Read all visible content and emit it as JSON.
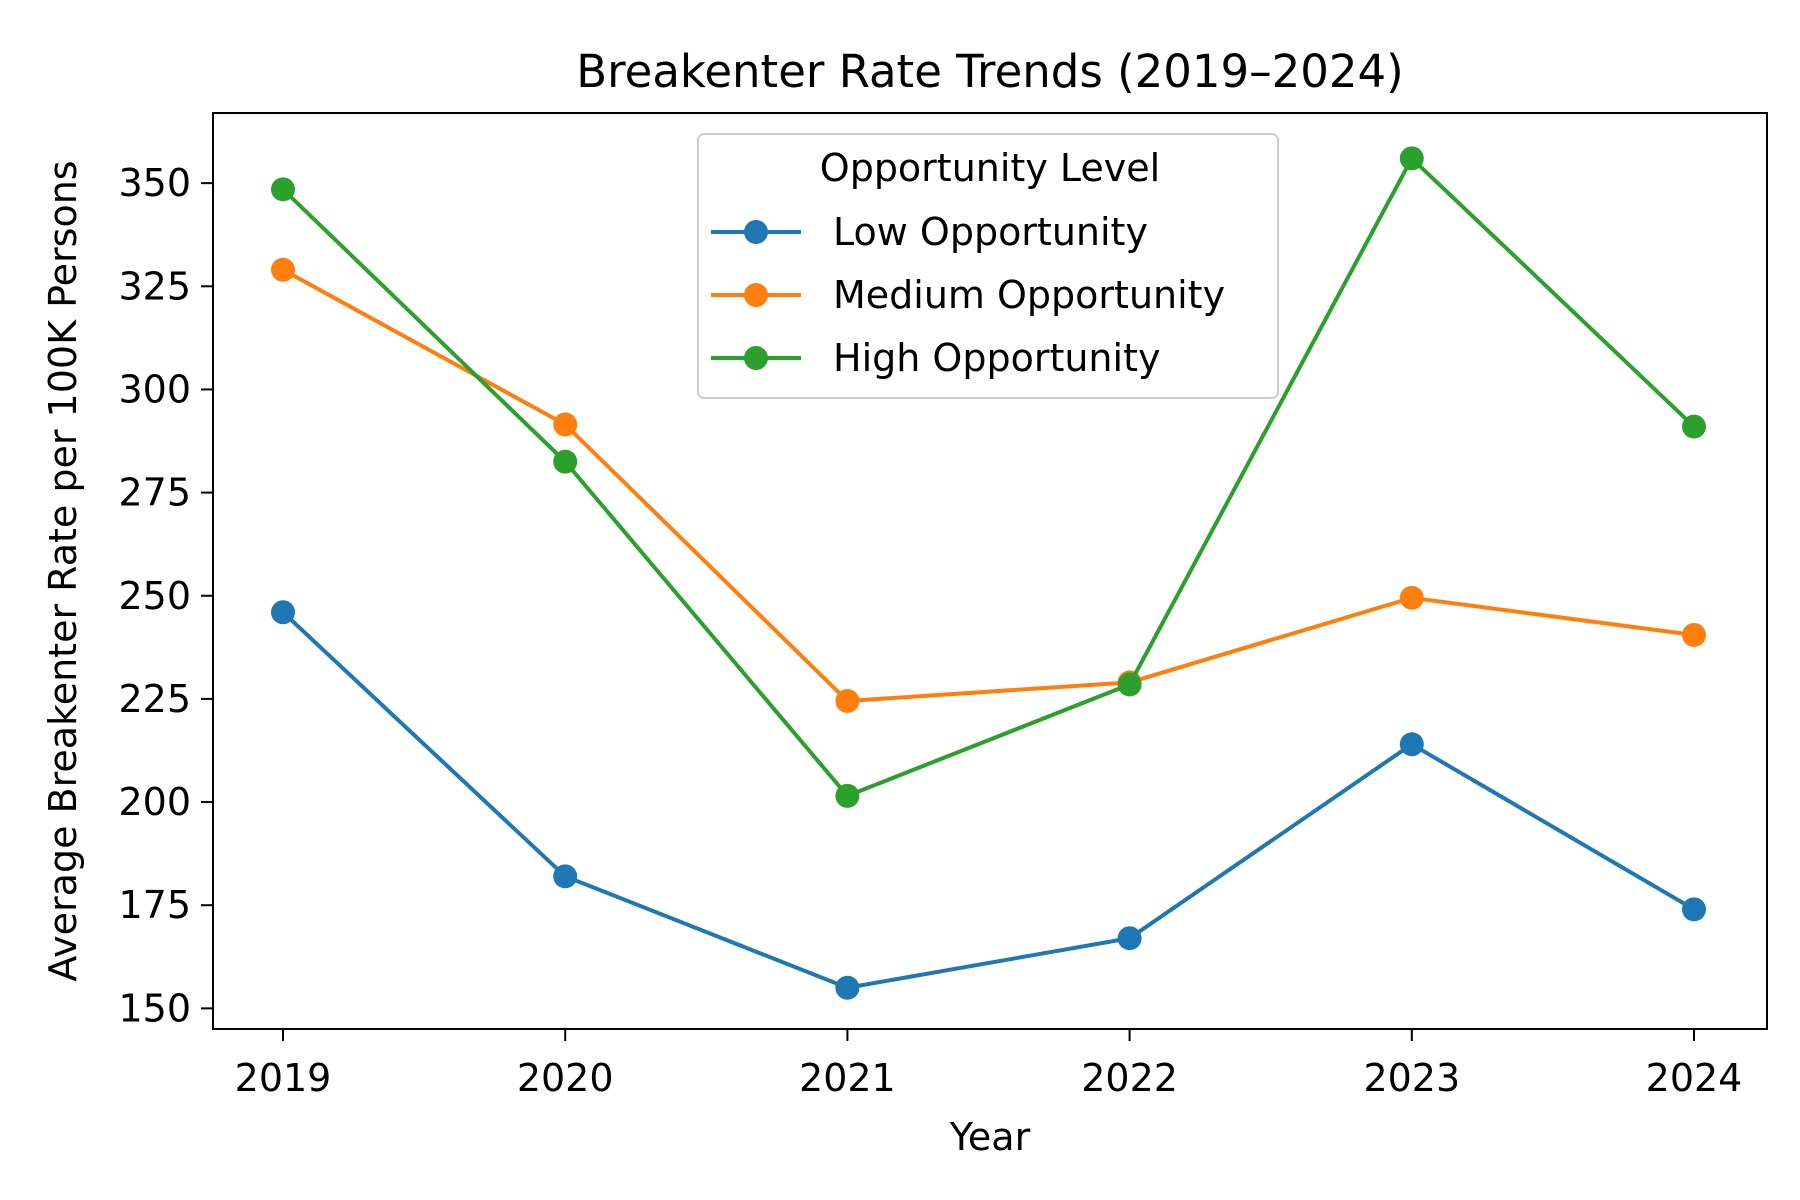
{
  "chart_data": {
    "type": "line",
    "title": "Breakenter Rate Trends (2019–2024)",
    "xlabel": "Year",
    "ylabel": "Average Breakenter Rate per 100K Persons",
    "x": [
      "2019",
      "2020",
      "2021",
      "2022",
      "2023",
      "2024"
    ],
    "ylim": [
      145,
      367
    ],
    "yticks": [
      150,
      175,
      200,
      225,
      250,
      275,
      300,
      325,
      350
    ],
    "grid": false,
    "legend": {
      "title": "Opportunity Level",
      "placement": "upper-center"
    },
    "series": [
      {
        "name": "Low Opportunity",
        "color": "#1f77b4",
        "values": [
          246,
          182,
          155,
          167,
          214,
          174
        ]
      },
      {
        "name": "Medium Opportunity",
        "color": "#ff7f0e",
        "values": [
          329,
          291.5,
          224.5,
          229,
          249.5,
          240.5
        ]
      },
      {
        "name": "High Opportunity",
        "color": "#2ca02c",
        "values": [
          348.5,
          282.5,
          201.5,
          228.5,
          356,
          291
        ]
      }
    ]
  }
}
